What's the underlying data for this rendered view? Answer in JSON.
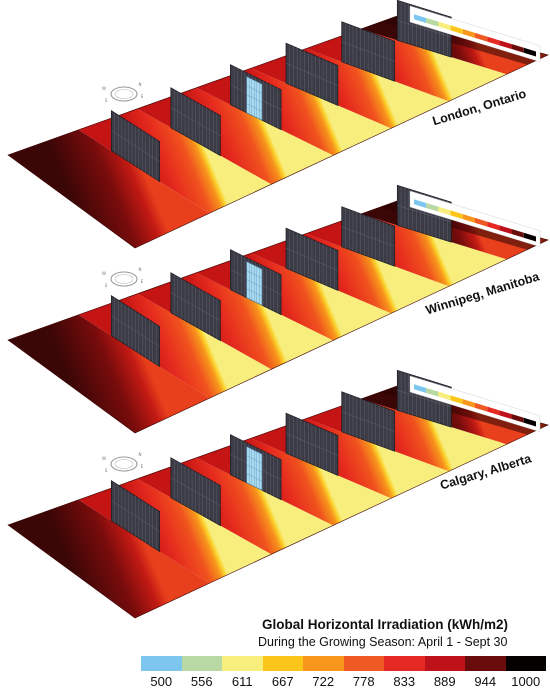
{
  "panels": [
    {
      "city": "London, Ontario"
    },
    {
      "city": "Winnipeg, Manitoba"
    },
    {
      "city": "Calgary, Alberta"
    }
  ],
  "legend": {
    "title": "Global Horizontal Irradiation (kWh/m2)",
    "subtitle": "During the Growing Season: April 1 - Sept 30",
    "ticks": [
      "500",
      "556",
      "611",
      "667",
      "722",
      "778",
      "833",
      "889",
      "944",
      "1000"
    ],
    "colors": [
      "#7cc6f0",
      "#b9d9a4",
      "#f7ee7e",
      "#fbc619",
      "#f8961c",
      "#ef5a24",
      "#e42a22",
      "#bd1219",
      "#6a0c0c",
      "#050101"
    ]
  },
  "compass_labels": [
    "N",
    "E",
    "S",
    "W"
  ]
}
